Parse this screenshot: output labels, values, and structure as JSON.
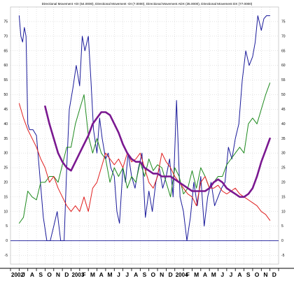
{
  "chart_data": {
    "type": "line",
    "title": "Directional Movement +DI (54.0000), Directional Movement -DI (7.0000), Directional Movement ADX (35.0000), Directional Movement DX (77.0000)",
    "xlabel": "",
    "ylabel": "",
    "ylim": [
      -8,
      80
    ],
    "grid": true,
    "legend": "none",
    "y_ticks": [
      -5,
      0,
      5,
      10,
      15,
      20,
      25,
      30,
      35,
      40,
      45,
      50,
      55,
      60,
      65,
      70,
      75
    ],
    "x_ticks": [
      "2002",
      "J",
      "A",
      "S",
      "O",
      "N",
      "D",
      "2003",
      "F",
      "M",
      "A",
      "M",
      "J",
      "J",
      "A",
      "S",
      "O",
      "N",
      "D",
      "2004",
      "F",
      "M",
      "A",
      "M",
      "J",
      "J",
      "A",
      "S",
      "O",
      "N",
      "D"
    ],
    "zero_line": 0,
    "series": [
      {
        "name": "Directional Movement DX",
        "color": "#1a1a9a",
        "x": [
          1,
          1.2,
          1.4,
          1.6,
          1.8,
          2,
          2.2,
          2.6,
          3,
          3.4,
          3.8,
          4.2,
          4.6,
          5,
          5.4,
          5.8,
          6.2,
          6.5,
          6.8,
          7.2,
          7.6,
          8,
          8.3,
          8.6,
          9,
          9.3,
          9.6,
          10,
          10.3,
          10.6,
          11,
          11.3,
          11.6,
          12,
          12.3,
          12.6,
          13,
          13.3,
          13.6,
          14,
          14.4,
          14.8,
          15.2,
          15.6,
          16,
          16.4,
          16.8,
          17.2,
          17.6,
          18,
          18.4,
          18.8,
          19.2,
          19.6,
          20,
          20.4,
          20.8,
          21.2,
          21.6,
          22,
          22.4,
          22.8,
          23.2,
          23.6,
          24,
          24.4,
          24.8,
          25.2,
          25.6,
          26,
          26.4,
          26.8,
          27.2,
          27.6,
          28,
          28.3,
          28.6,
          29,
          29.3,
          29.6,
          30
        ],
        "values": [
          77,
          70,
          68,
          73,
          70,
          40,
          38,
          38,
          36,
          22,
          8,
          0,
          0,
          5,
          10,
          0,
          0,
          25,
          45,
          52,
          60,
          53,
          70,
          65,
          70,
          55,
          38,
          30,
          42,
          35,
          28,
          30,
          25,
          22,
          10,
          6,
          25,
          20,
          30,
          22,
          18,
          25,
          30,
          8,
          17,
          10,
          20,
          25,
          18,
          22,
          28,
          15,
          48,
          15,
          10,
          0,
          8,
          20,
          12,
          22,
          5,
          15,
          20,
          12,
          15,
          18,
          20,
          32,
          28,
          35,
          40,
          55,
          65,
          60,
          63,
          68,
          77,
          72,
          76,
          77,
          77
        ]
      },
      {
        "name": "Directional Movement +DI",
        "color": "#1e8a1e",
        "x": [
          1,
          1.5,
          2,
          2.5,
          3,
          3.5,
          4,
          4.5,
          5,
          5.5,
          6,
          6.5,
          7,
          7.5,
          8,
          8.5,
          9,
          9.5,
          10,
          10.5,
          11,
          11.5,
          12,
          12.5,
          13,
          13.5,
          14,
          14.5,
          15,
          15.5,
          16,
          16.5,
          17,
          17.5,
          18,
          18.5,
          19,
          19.5,
          20,
          20.5,
          21,
          21.5,
          22,
          22.5,
          23,
          23.5,
          24,
          24.5,
          25,
          25.5,
          26,
          26.5,
          27,
          27.5,
          28,
          28.5,
          29,
          29.5,
          30
        ],
        "values": [
          6,
          8,
          17,
          15,
          14,
          20,
          20,
          22,
          22,
          20,
          26,
          32,
          32,
          40,
          45,
          50,
          36,
          30,
          35,
          30,
          28,
          20,
          25,
          22,
          25,
          18,
          22,
          20,
          27,
          22,
          28,
          24,
          26,
          25,
          20,
          15,
          25,
          22,
          16,
          18,
          24,
          18,
          25,
          22,
          18,
          20,
          22,
          22,
          26,
          28,
          30,
          32,
          30,
          40,
          42,
          40,
          45,
          50,
          54
        ]
      },
      {
        "name": "Directional Movement -DI",
        "color": "#e02020",
        "x": [
          1,
          1.5,
          2,
          2.5,
          3,
          3.5,
          4,
          4.5,
          5,
          5.5,
          6,
          6.5,
          7,
          7.5,
          8,
          8.5,
          9,
          9.5,
          10,
          10.5,
          11,
          11.5,
          12,
          12.5,
          13,
          13.5,
          14,
          14.5,
          15,
          15.5,
          16,
          16.5,
          17,
          17.5,
          18,
          18.5,
          19,
          19.5,
          20,
          20.5,
          21,
          21.5,
          22,
          22.5,
          23,
          23.5,
          24,
          24.5,
          25,
          25.5,
          26,
          26.5,
          27,
          27.5,
          28,
          28.5,
          29,
          29.5,
          30
        ],
        "values": [
          47,
          42,
          38,
          35,
          32,
          28,
          25,
          20,
          22,
          18,
          15,
          12,
          10,
          12,
          10,
          15,
          10,
          18,
          20,
          25,
          30,
          28,
          26,
          28,
          25,
          30,
          27,
          28,
          30,
          25,
          20,
          18,
          22,
          30,
          27,
          25,
          22,
          20,
          18,
          16,
          15,
          12,
          20,
          22,
          18,
          18,
          19,
          17,
          16,
          17,
          18,
          16,
          15,
          14,
          13,
          12,
          10,
          9,
          7
        ]
      },
      {
        "name": "Directional Movement ADX",
        "color": "#7a1890",
        "x": [
          4,
          4.5,
          5,
          5.5,
          6,
          6.5,
          7,
          7.5,
          8,
          8.5,
          9,
          9.5,
          10,
          10.5,
          11,
          11.5,
          12,
          12.5,
          13,
          13.5,
          14,
          14.5,
          15,
          15.5,
          16,
          16.5,
          17,
          17.5,
          18,
          18.5,
          19,
          19.5,
          20,
          20.5,
          21,
          21.5,
          22,
          22.5,
          23,
          23.5,
          24,
          24.5,
          25,
          25.5,
          26,
          26.5,
          27,
          27.5,
          28,
          28.5,
          29,
          29.5,
          30
        ],
        "values": [
          46,
          40,
          35,
          30,
          27,
          25,
          24,
          27,
          30,
          33,
          36,
          40,
          42,
          44,
          44,
          43,
          40,
          37,
          33,
          30,
          28,
          27,
          27,
          25,
          24,
          23,
          23,
          22,
          22,
          22,
          21,
          20,
          19,
          18,
          17,
          17,
          17,
          17,
          18,
          20,
          21,
          20,
          18,
          17,
          16,
          15,
          15,
          16,
          18,
          22,
          27,
          31,
          35
        ]
      }
    ]
  }
}
